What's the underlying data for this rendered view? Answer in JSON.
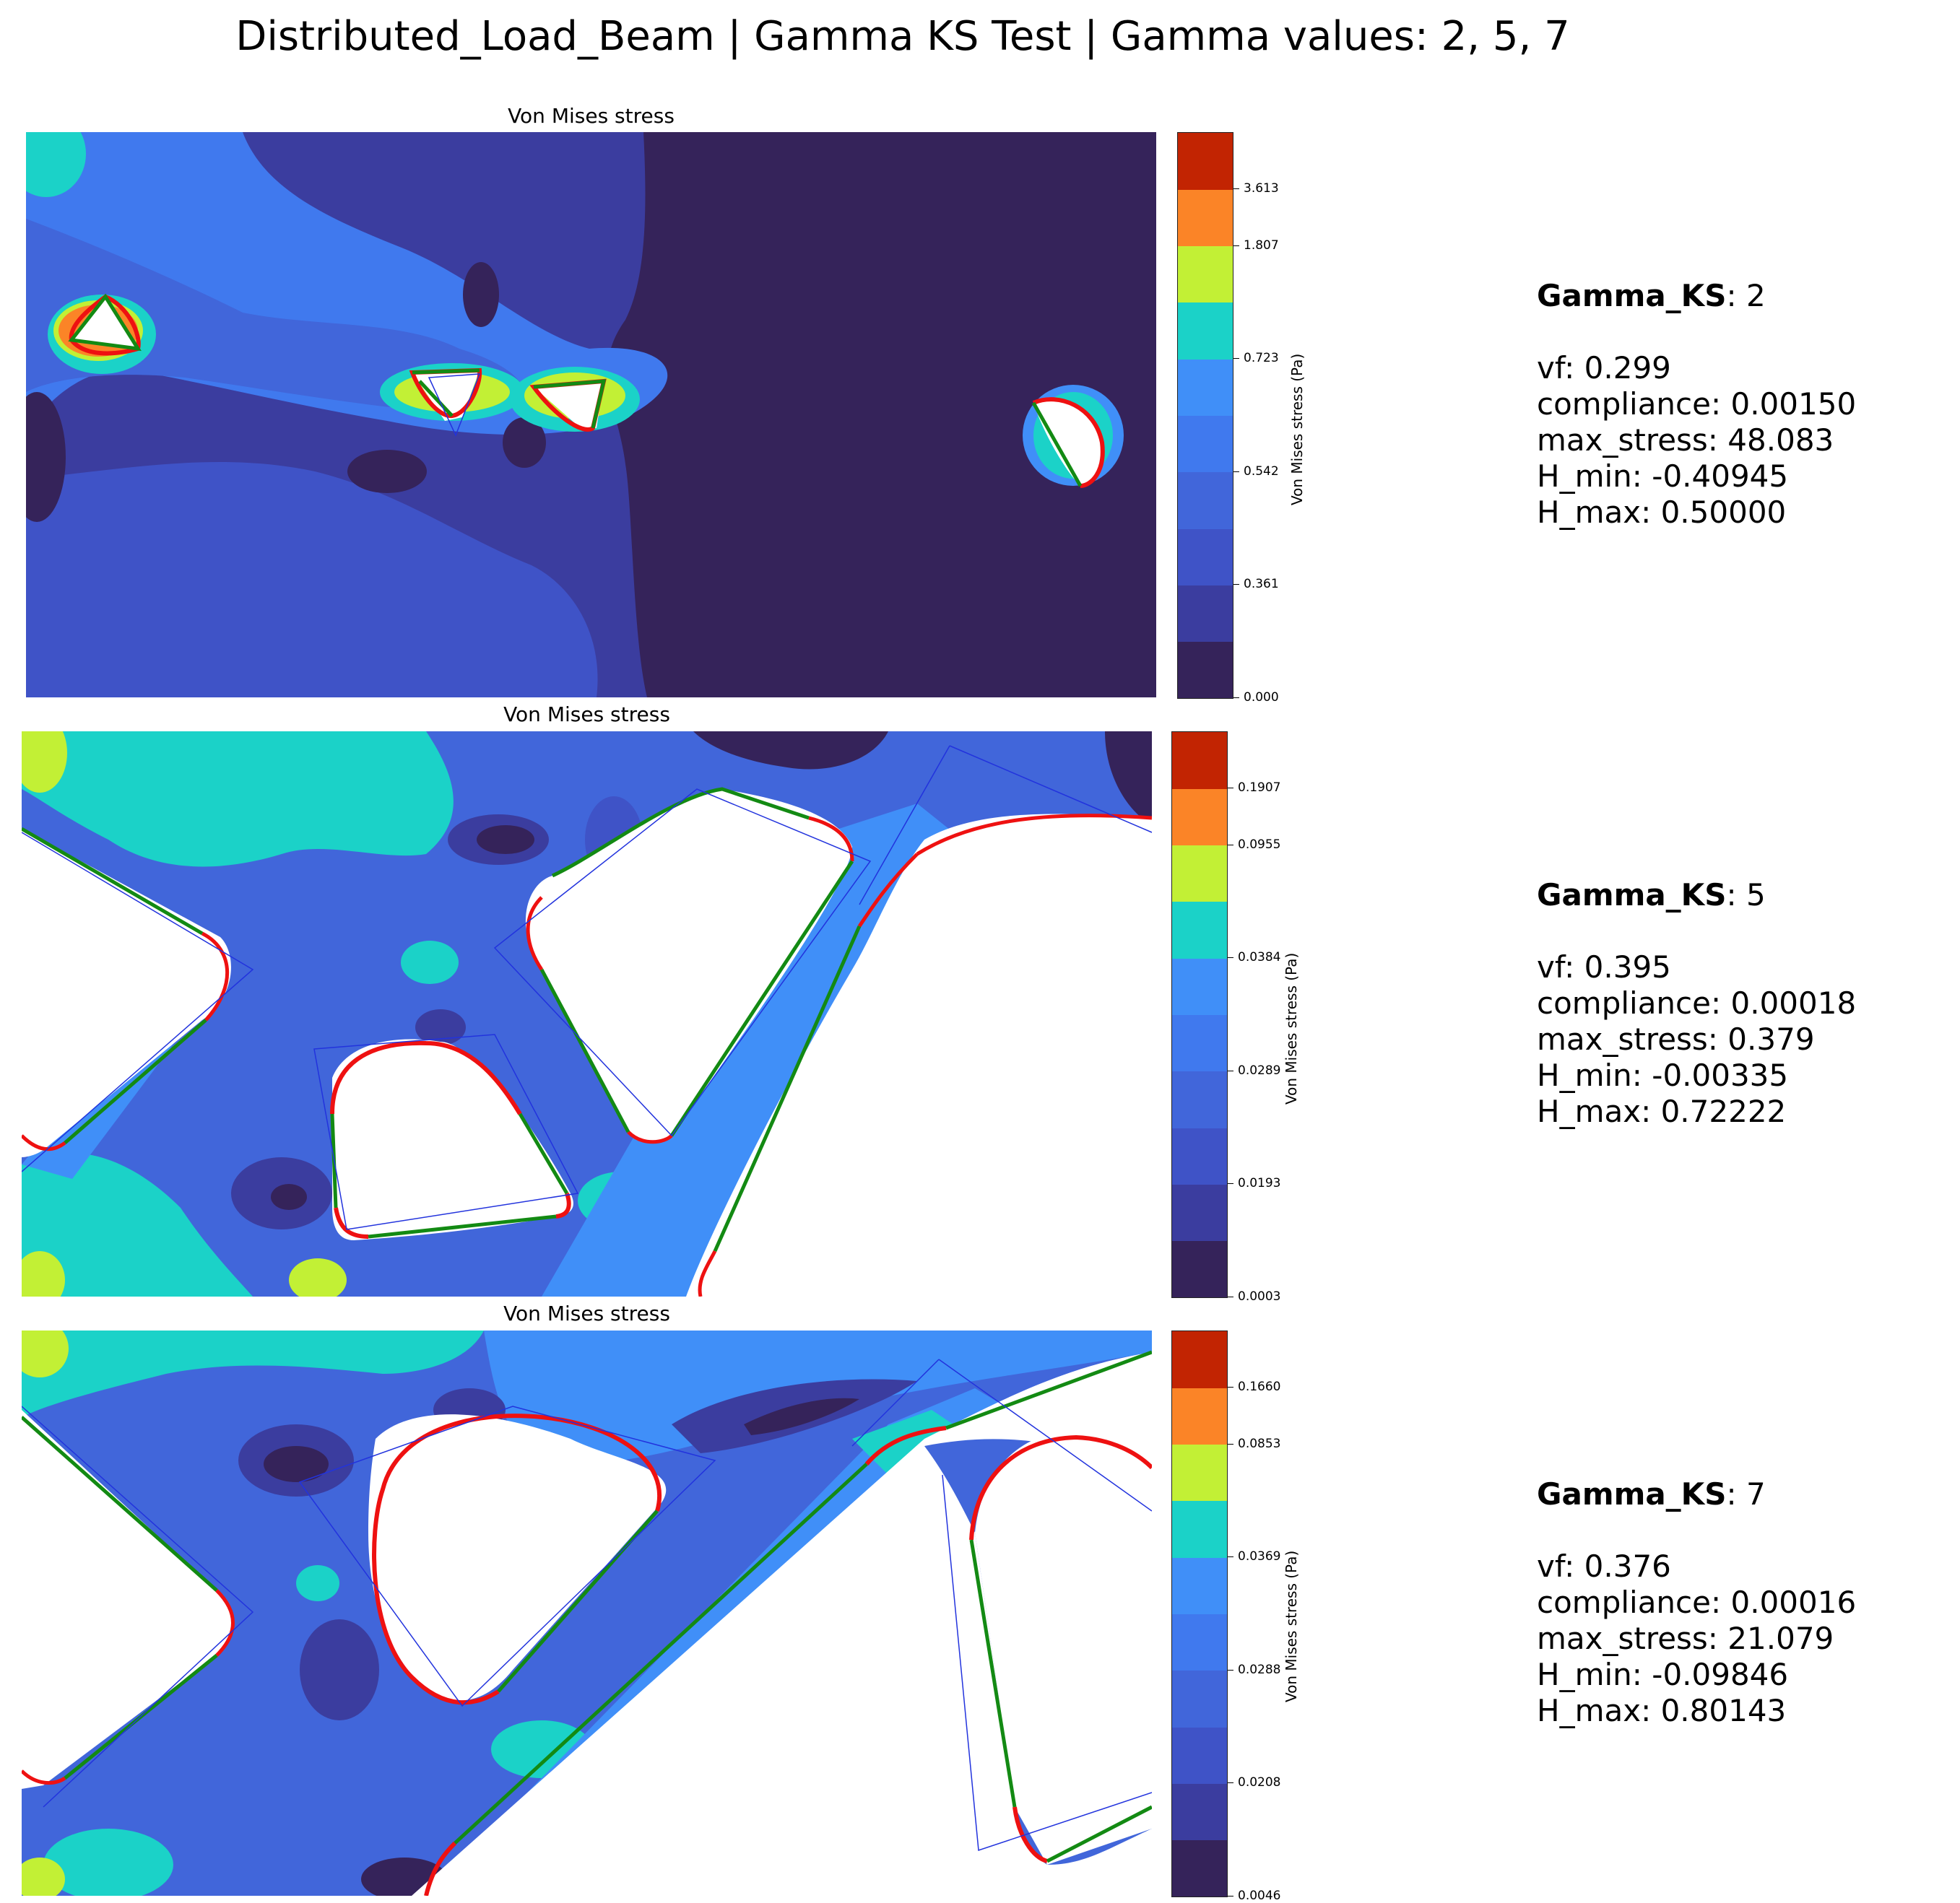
{
  "figure": {
    "title": "Distributed_Load_Beam | Gamma KS Test | Gamma values: 2, 5, 7"
  },
  "colors": {
    "levels": [
      "#35235a",
      "#3b3d9f",
      "#3f53c7",
      "#4166da",
      "#4079ee",
      "#408ff8",
      "#1bd2c8",
      "#c2f035",
      "#fb8427",
      "#c22402"
    ],
    "boundary_smooth": "#ee1111",
    "boundary_straight": "#138a13",
    "skeleton": "#2233dd",
    "void": "#ffffff"
  },
  "chart_data": [
    {
      "type": "heatmap",
      "title": "Von Mises stress",
      "colorbar_label": "Von Mises stress (Pa)",
      "colorbar_ticks": [
        "0.000",
        "0.361",
        "0.542",
        "0.723",
        "1.807",
        "3.613"
      ],
      "info": {
        "gamma_key": "Gamma_KS",
        "gamma_value": ": 2",
        "lines": [
          "vf: 0.299",
          "compliance: 0.00150",
          "max_stress: 48.083",
          "H_min: -0.40945",
          "H_max: 0.50000"
        ]
      }
    },
    {
      "type": "heatmap",
      "title": "Von Mises stress",
      "colorbar_label": "Von Mises stress (Pa)",
      "colorbar_ticks": [
        "0.0003",
        "0.0193",
        "0.0289",
        "0.0384",
        "0.0955",
        "0.1907"
      ],
      "info": {
        "gamma_key": "Gamma_KS",
        "gamma_value": ": 5",
        "lines": [
          "vf: 0.395",
          "compliance: 0.00018",
          "max_stress: 0.379",
          "H_min: -0.00335",
          "H_max: 0.72222"
        ]
      }
    },
    {
      "type": "heatmap",
      "title": "Von Mises stress",
      "colorbar_label": "Von Mises stress (Pa)",
      "colorbar_ticks": [
        "0.0046",
        "0.0208",
        "0.0288",
        "0.0369",
        "0.0853",
        "0.1660"
      ],
      "info": {
        "gamma_key": "Gamma_KS",
        "gamma_value": ": 7",
        "lines": [
          "vf: 0.376",
          "compliance: 0.00016",
          "max_stress: 21.079",
          "H_min: -0.09846",
          "H_max: 0.80143"
        ]
      }
    }
  ]
}
